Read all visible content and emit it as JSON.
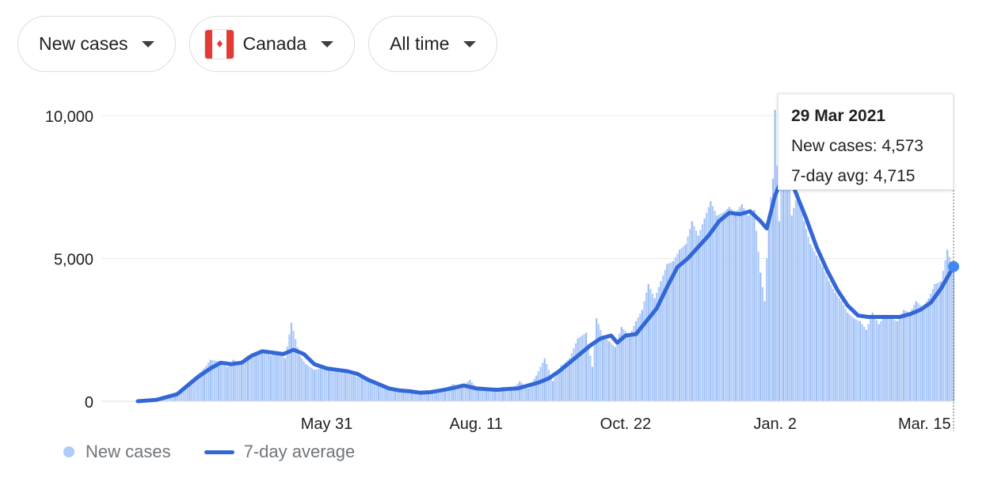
{
  "filters": {
    "metric": "New cases",
    "country": "Canada",
    "country_flag_icon": "canada-flag-icon",
    "range": "All time"
  },
  "tooltip": {
    "date": "29 Mar 2021",
    "new_cases": "New cases: 4,573",
    "avg": "7-day avg: 4,715"
  },
  "legend": {
    "bars": "New cases",
    "line": "7-day average"
  },
  "colors": {
    "bar": "#aecbfa",
    "line": "#3367d6",
    "marker": "#4285f4",
    "grid": "#ebebeb",
    "axis": "#999999"
  },
  "chart_data": {
    "type": "bar",
    "ylim": [
      0,
      11000
    ],
    "y_ticks": [
      0,
      5000,
      10000
    ],
    "y_tick_labels": [
      "0",
      "5,000",
      "10,000"
    ],
    "x_range": [
      "2020-03-01",
      "2021-03-29"
    ],
    "x_ticks": [
      {
        "date": "2020-05-31",
        "label": "May 31"
      },
      {
        "date": "2020-08-11",
        "label": "Aug. 11"
      },
      {
        "date": "2020-10-22",
        "label": "Oct. 22"
      },
      {
        "date": "2021-01-02",
        "label": "Jan. 2"
      },
      {
        "date": "2021-03-15",
        "label": "Mar. 15"
      }
    ],
    "grid": "horizontal",
    "legend_position": "bottom-left",
    "series": [
      {
        "name": "7-day average",
        "type": "line",
        "points": [
          [
            "2020-03-01",
            0
          ],
          [
            "2020-03-10",
            50
          ],
          [
            "2020-03-15",
            150
          ],
          [
            "2020-03-20",
            250
          ],
          [
            "2020-03-25",
            550
          ],
          [
            "2020-03-30",
            850
          ],
          [
            "2020-04-05",
            1150
          ],
          [
            "2020-04-10",
            1350
          ],
          [
            "2020-04-15",
            1300
          ],
          [
            "2020-04-20",
            1350
          ],
          [
            "2020-04-25",
            1600
          ],
          [
            "2020-04-30",
            1750
          ],
          [
            "2020-05-05",
            1700
          ],
          [
            "2020-05-10",
            1650
          ],
          [
            "2020-05-15",
            1800
          ],
          [
            "2020-05-20",
            1650
          ],
          [
            "2020-05-25",
            1300
          ],
          [
            "2020-05-31",
            1150
          ],
          [
            "2020-06-05",
            1100
          ],
          [
            "2020-06-10",
            1050
          ],
          [
            "2020-06-15",
            950
          ],
          [
            "2020-06-20",
            750
          ],
          [
            "2020-06-25",
            600
          ],
          [
            "2020-06-30",
            450
          ],
          [
            "2020-07-05",
            380
          ],
          [
            "2020-07-10",
            350
          ],
          [
            "2020-07-15",
            300
          ],
          [
            "2020-07-20",
            320
          ],
          [
            "2020-07-25",
            380
          ],
          [
            "2020-07-30",
            450
          ],
          [
            "2020-08-05",
            550
          ],
          [
            "2020-08-11",
            450
          ],
          [
            "2020-08-16",
            420
          ],
          [
            "2020-08-21",
            400
          ],
          [
            "2020-08-26",
            430
          ],
          [
            "2020-08-31",
            450
          ],
          [
            "2020-09-05",
            550
          ],
          [
            "2020-09-10",
            650
          ],
          [
            "2020-09-15",
            800
          ],
          [
            "2020-09-20",
            1050
          ],
          [
            "2020-09-25",
            1350
          ],
          [
            "2020-09-30",
            1650
          ],
          [
            "2020-10-05",
            1950
          ],
          [
            "2020-10-10",
            2200
          ],
          [
            "2020-10-15",
            2300
          ],
          [
            "2020-10-18",
            2050
          ],
          [
            "2020-10-22",
            2300
          ],
          [
            "2020-10-27",
            2350
          ],
          [
            "2020-11-01",
            2800
          ],
          [
            "2020-11-06",
            3250
          ],
          [
            "2020-11-11",
            4000
          ],
          [
            "2020-11-16",
            4700
          ],
          [
            "2020-11-21",
            5000
          ],
          [
            "2020-11-26",
            5400
          ],
          [
            "2020-12-01",
            5800
          ],
          [
            "2020-12-06",
            6300
          ],
          [
            "2020-12-11",
            6600
          ],
          [
            "2020-12-16",
            6550
          ],
          [
            "2020-12-21",
            6650
          ],
          [
            "2020-12-26",
            6300
          ],
          [
            "2020-12-29",
            6050
          ],
          [
            "2021-01-02",
            7200
          ],
          [
            "2021-01-06",
            7900
          ],
          [
            "2021-01-09",
            7850
          ],
          [
            "2021-01-12",
            7300
          ],
          [
            "2021-01-17",
            6400
          ],
          [
            "2021-01-22",
            5400
          ],
          [
            "2021-01-27",
            4600
          ],
          [
            "2021-02-01",
            3900
          ],
          [
            "2021-02-06",
            3350
          ],
          [
            "2021-02-11",
            3000
          ],
          [
            "2021-02-16",
            2950
          ],
          [
            "2021-02-21",
            2950
          ],
          [
            "2021-02-26",
            2950
          ],
          [
            "2021-03-03",
            2950
          ],
          [
            "2021-03-08",
            3050
          ],
          [
            "2021-03-13",
            3200
          ],
          [
            "2021-03-18",
            3450
          ],
          [
            "2021-03-23",
            3950
          ],
          [
            "2021-03-29",
            4715
          ]
        ]
      },
      {
        "name": "New cases",
        "type": "bar",
        "points": [
          [
            "2020-03-05",
            30
          ],
          [
            "2020-03-12",
            60
          ],
          [
            "2020-03-19",
            250
          ],
          [
            "2020-03-26",
            700
          ],
          [
            "2020-04-02",
            1150
          ],
          [
            "2020-04-05",
            1450
          ],
          [
            "2020-04-09",
            1400
          ],
          [
            "2020-04-13",
            1200
          ],
          [
            "2020-04-16",
            1450
          ],
          [
            "2020-04-20",
            1300
          ],
          [
            "2020-04-23",
            1600
          ],
          [
            "2020-04-27",
            1700
          ],
          [
            "2020-04-30",
            1800
          ],
          [
            "2020-05-04",
            1600
          ],
          [
            "2020-05-07",
            1750
          ],
          [
            "2020-05-11",
            1500
          ],
          [
            "2020-05-14",
            2750
          ],
          [
            "2020-05-18",
            1600
          ],
          [
            "2020-05-21",
            1300
          ],
          [
            "2020-05-25",
            1100
          ],
          [
            "2020-05-28",
            1150
          ],
          [
            "2020-06-01",
            1200
          ],
          [
            "2020-06-05",
            1050
          ],
          [
            "2020-06-09",
            1000
          ],
          [
            "2020-06-13",
            900
          ],
          [
            "2020-06-17",
            800
          ],
          [
            "2020-06-21",
            650
          ],
          [
            "2020-06-25",
            550
          ],
          [
            "2020-06-29",
            450
          ],
          [
            "2020-07-03",
            400
          ],
          [
            "2020-07-07",
            350
          ],
          [
            "2020-07-11",
            300
          ],
          [
            "2020-07-15",
            350
          ],
          [
            "2020-07-19",
            300
          ],
          [
            "2020-07-23",
            400
          ],
          [
            "2020-07-27",
            450
          ],
          [
            "2020-07-31",
            600
          ],
          [
            "2020-08-04",
            500
          ],
          [
            "2020-08-08",
            750
          ],
          [
            "2020-08-12",
            400
          ],
          [
            "2020-08-16",
            450
          ],
          [
            "2020-08-20",
            350
          ],
          [
            "2020-08-24",
            500
          ],
          [
            "2020-08-28",
            400
          ],
          [
            "2020-09-01",
            700
          ],
          [
            "2020-09-05",
            450
          ],
          [
            "2020-09-09",
            900
          ],
          [
            "2020-09-13",
            1500
          ],
          [
            "2020-09-17",
            700
          ],
          [
            "2020-09-21",
            1250
          ],
          [
            "2020-09-25",
            1500
          ],
          [
            "2020-09-29",
            2200
          ],
          [
            "2020-10-03",
            2400
          ],
          [
            "2020-10-06",
            1200
          ],
          [
            "2020-10-08",
            2900
          ],
          [
            "2020-10-11",
            2300
          ],
          [
            "2020-10-14",
            2100
          ],
          [
            "2020-10-17",
            1900
          ],
          [
            "2020-10-20",
            2600
          ],
          [
            "2020-10-24",
            2300
          ],
          [
            "2020-10-27",
            2800
          ],
          [
            "2020-10-30",
            3200
          ],
          [
            "2020-11-02",
            4100
          ],
          [
            "2020-11-05",
            3600
          ],
          [
            "2020-11-08",
            4200
          ],
          [
            "2020-11-11",
            4800
          ],
          [
            "2020-11-14",
            4900
          ],
          [
            "2020-11-17",
            5300
          ],
          [
            "2020-11-20",
            5500
          ],
          [
            "2020-11-23",
            6300
          ],
          [
            "2020-11-26",
            5800
          ],
          [
            "2020-11-29",
            6400
          ],
          [
            "2020-12-02",
            7000
          ],
          [
            "2020-12-05",
            6500
          ],
          [
            "2020-12-08",
            6600
          ],
          [
            "2020-12-11",
            6800
          ],
          [
            "2020-12-14",
            6600
          ],
          [
            "2020-12-17",
            6900
          ],
          [
            "2020-12-20",
            6500
          ],
          [
            "2020-12-23",
            6700
          ],
          [
            "2020-12-26",
            4500
          ],
          [
            "2020-12-28",
            3500
          ],
          [
            "2020-12-30",
            6500
          ],
          [
            "2021-01-01",
            7800
          ],
          [
            "2021-01-02",
            10200
          ],
          [
            "2021-01-04",
            6300
          ],
          [
            "2021-01-06",
            8900
          ],
          [
            "2021-01-08",
            8700
          ],
          [
            "2021-01-10",
            6500
          ],
          [
            "2021-01-13",
            7300
          ],
          [
            "2021-01-16",
            6300
          ],
          [
            "2021-01-19",
            5500
          ],
          [
            "2021-01-22",
            5100
          ],
          [
            "2021-01-25",
            4700
          ],
          [
            "2021-01-28",
            4200
          ],
          [
            "2021-01-31",
            3800
          ],
          [
            "2021-02-03",
            3500
          ],
          [
            "2021-02-06",
            3100
          ],
          [
            "2021-02-09",
            2900
          ],
          [
            "2021-02-12",
            2800
          ],
          [
            "2021-02-15",
            2500
          ],
          [
            "2021-02-18",
            3100
          ],
          [
            "2021-02-21",
            2700
          ],
          [
            "2021-02-24",
            3000
          ],
          [
            "2021-02-27",
            2900
          ],
          [
            "2021-03-02",
            2800
          ],
          [
            "2021-03-05",
            3200
          ],
          [
            "2021-03-08",
            3100
          ],
          [
            "2021-03-11",
            3500
          ],
          [
            "2021-03-14",
            3300
          ],
          [
            "2021-03-17",
            3600
          ],
          [
            "2021-03-20",
            4100
          ],
          [
            "2021-03-23",
            4200
          ],
          [
            "2021-03-26",
            5300
          ],
          [
            "2021-03-29",
            4573
          ]
        ]
      }
    ],
    "highlight": {
      "date": "2021-03-29",
      "new_cases": 4573,
      "avg": 4715
    }
  }
}
